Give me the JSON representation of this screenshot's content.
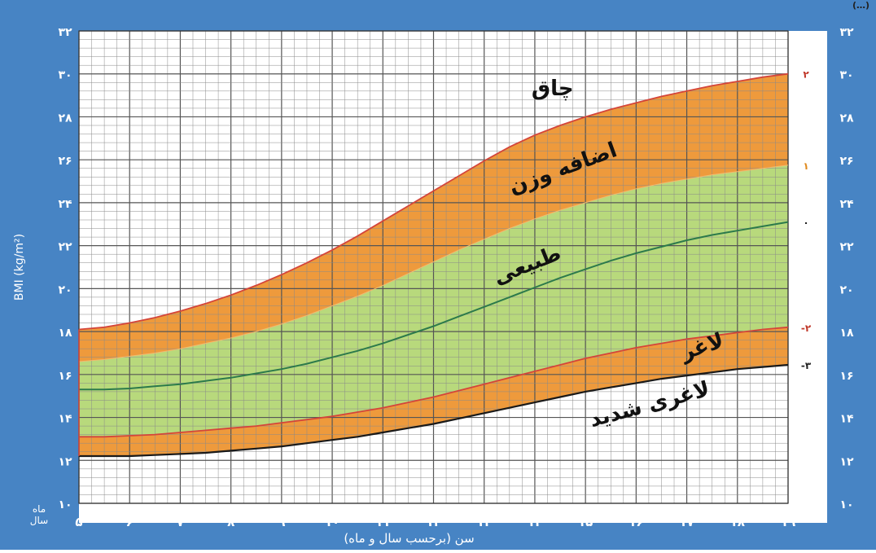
{
  "colors": {
    "frame": "#4784c4",
    "grid": "#8a8a8a",
    "obese_band": "#ee9a3c",
    "normal_band": "#b8d97c",
    "thin_band": "#ee9a3c",
    "median_line": "#2c7a4b",
    "upper_border": "#d4453a",
    "severe_line": "#1a1a1a",
    "zscore_red": "#c0392b",
    "zscore_orange": "#e08a1e"
  },
  "chart_data": {
    "type": "area",
    "ylabel": "BMI (kg/m²)",
    "xlabel": "سن (برحسب سال و ماه)",
    "unit_month": "ماه",
    "unit_year": "سال",
    "xlim": [
      5,
      19
    ],
    "ylim": [
      10,
      32
    ],
    "grid": true,
    "y_tick_labels": [
      "۱۰",
      "۱۲",
      "۱۴",
      "۱۶",
      "۱۸",
      "۲۰",
      "۲۲",
      "۲۴",
      "۲۶",
      "۲۸",
      "۳۰",
      "۳۲"
    ],
    "y_tick_values": [
      10,
      12,
      14,
      16,
      18,
      20,
      22,
      24,
      26,
      28,
      30,
      32
    ],
    "x_year_labels": [
      "۵",
      "۶",
      "۷",
      "۸",
      "۹",
      "۱۰",
      "۱۱",
      "۱۲",
      "۱۳",
      "۱۴",
      "۱۵",
      "۱۶",
      "۱۷",
      "۱۸",
      "۱۹"
    ],
    "x_year_values": [
      5,
      6,
      7,
      8,
      9,
      10,
      11,
      12,
      13,
      14,
      15,
      16,
      17,
      18,
      19
    ],
    "x_month_labels": [
      "۳",
      "۶",
      "۹"
    ],
    "x": [
      5,
      5.5,
      6,
      6.5,
      7,
      7.5,
      8,
      8.5,
      9,
      9.5,
      10,
      10.5,
      11,
      11.5,
      12,
      12.5,
      13,
      13.5,
      14,
      14.5,
      15,
      15.5,
      16,
      16.5,
      17,
      17.5,
      18,
      18.5,
      19
    ],
    "series": [
      {
        "name": "۲",
        "values": [
          18.1,
          18.2,
          18.4,
          18.65,
          18.95,
          19.3,
          19.7,
          20.15,
          20.65,
          21.2,
          21.8,
          22.45,
          23.15,
          23.85,
          24.55,
          25.25,
          25.95,
          26.6,
          27.15,
          27.6,
          28.0,
          28.35,
          28.65,
          28.95,
          29.2,
          29.45,
          29.65,
          29.85,
          30.0
        ]
      },
      {
        "name": "۱",
        "values": [
          16.6,
          16.7,
          16.85,
          17.0,
          17.2,
          17.45,
          17.7,
          18.0,
          18.35,
          18.75,
          19.2,
          19.65,
          20.15,
          20.7,
          21.25,
          21.8,
          22.3,
          22.8,
          23.25,
          23.65,
          24.0,
          24.35,
          24.65,
          24.9,
          25.1,
          25.3,
          25.45,
          25.6,
          25.75
        ]
      },
      {
        "name": "۰",
        "values": [
          15.3,
          15.3,
          15.35,
          15.45,
          15.55,
          15.7,
          15.85,
          16.05,
          16.25,
          16.5,
          16.8,
          17.1,
          17.45,
          17.85,
          18.25,
          18.7,
          19.15,
          19.6,
          20.05,
          20.5,
          20.9,
          21.3,
          21.65,
          21.95,
          22.25,
          22.5,
          22.7,
          22.9,
          23.1
        ]
      },
      {
        "name": "-۲",
        "values": [
          13.1,
          13.1,
          13.15,
          13.2,
          13.3,
          13.4,
          13.5,
          13.6,
          13.75,
          13.9,
          14.05,
          14.25,
          14.45,
          14.7,
          14.95,
          15.25,
          15.55,
          15.85,
          16.15,
          16.45,
          16.75,
          17.0,
          17.25,
          17.45,
          17.65,
          17.8,
          17.95,
          18.1,
          18.2
        ]
      },
      {
        "name": "-۳",
        "values": [
          12.2,
          12.2,
          12.2,
          12.25,
          12.3,
          12.35,
          12.45,
          12.55,
          12.65,
          12.8,
          12.95,
          13.1,
          13.3,
          13.5,
          13.7,
          13.95,
          14.2,
          14.45,
          14.7,
          14.95,
          15.2,
          15.4,
          15.6,
          15.8,
          15.95,
          16.1,
          16.25,
          16.35,
          16.45
        ]
      }
    ],
    "zone_labels": {
      "obese": "چاق",
      "overweight": "اضافه وزن",
      "normal": "طبیعی",
      "thin": "لاغر",
      "severely_thin": "لاغری شدید"
    },
    "zone_label_positions": {
      "obese": [
        14.35,
        29.0
      ],
      "overweight": [
        14.6,
        25.3
      ],
      "normal": [
        13.9,
        20.8
      ],
      "thin": [
        17.35,
        17.0
      ],
      "severely_thin": [
        16.3,
        14.3
      ]
    },
    "zone_label_rotation_deg": {
      "obese": 0,
      "overweight": -20,
      "normal": -22,
      "thin": -18,
      "severely_thin": -15
    },
    "corner_label": "(…)"
  }
}
